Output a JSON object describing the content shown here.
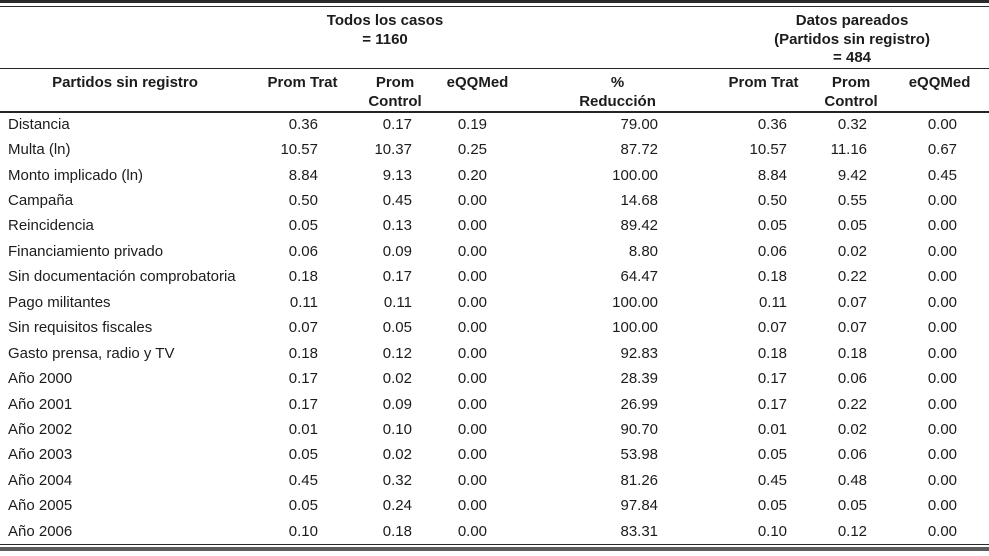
{
  "table": {
    "group_headers": [
      {
        "label": "Todos los casos\n= 1160"
      },
      {
        "label": "Datos pareados\n(Partidos sin registro)\n= 484"
      }
    ],
    "columns": [
      "Partidos sin registro",
      "Prom Trat",
      "Prom\nControl",
      "eQQMed",
      "%\nReducción",
      "Prom Trat",
      "Prom\nControl",
      "eQQMed"
    ],
    "rows": [
      {
        "label": "Distancia",
        "values": [
          "0.36",
          "0.17",
          "0.19",
          "79.00",
          "0.36",
          "0.32",
          "0.00"
        ]
      },
      {
        "label": "Multa (ln)",
        "values": [
          "10.57",
          "10.37",
          "0.25",
          "87.72",
          "10.57",
          "11.16",
          "0.67"
        ]
      },
      {
        "label": "Monto implicado (ln)",
        "values": [
          "8.84",
          "9.13",
          "0.20",
          "100.00",
          "8.84",
          "9.42",
          "0.45"
        ]
      },
      {
        "label": "Campaña",
        "values": [
          "0.50",
          "0.45",
          "0.00",
          "14.68",
          "0.50",
          "0.55",
          "0.00"
        ]
      },
      {
        "label": "Reincidencia",
        "values": [
          "0.05",
          "0.13",
          "0.00",
          "89.42",
          "0.05",
          "0.05",
          "0.00"
        ]
      },
      {
        "label": "Financiamiento privado",
        "values": [
          "0.06",
          "0.09",
          "0.00",
          "8.80",
          "0.06",
          "0.02",
          "0.00"
        ]
      },
      {
        "label": "Sin documentación comprobatoria",
        "values": [
          "0.18",
          "0.17",
          "0.00",
          "64.47",
          "0.18",
          "0.22",
          "0.00"
        ]
      },
      {
        "label": "Pago militantes",
        "values": [
          "0.11",
          "0.11",
          "0.00",
          "100.00",
          "0.11",
          "0.07",
          "0.00"
        ]
      },
      {
        "label": "Sin requisitos fiscales",
        "values": [
          "0.07",
          "0.05",
          "0.00",
          "100.00",
          "0.07",
          "0.07",
          "0.00"
        ]
      },
      {
        "label": "Gasto prensa, radio y TV",
        "values": [
          "0.18",
          "0.12",
          "0.00",
          "92.83",
          "0.18",
          "0.18",
          "0.00"
        ]
      },
      {
        "label": "Año 2000",
        "values": [
          "0.17",
          "0.02",
          "0.00",
          "28.39",
          "0.17",
          "0.06",
          "0.00"
        ]
      },
      {
        "label": "Año 2001",
        "values": [
          "0.17",
          "0.09",
          "0.00",
          "26.99",
          "0.17",
          "0.22",
          "0.00"
        ]
      },
      {
        "label": "Año 2002",
        "values": [
          "0.01",
          "0.10",
          "0.00",
          "90.70",
          "0.01",
          "0.02",
          "0.00"
        ]
      },
      {
        "label": "Año 2003",
        "values": [
          "0.05",
          "0.02",
          "0.00",
          "53.98",
          "0.05",
          "0.06",
          "0.00"
        ]
      },
      {
        "label": "Año 2004",
        "values": [
          "0.45",
          "0.32",
          "0.00",
          "81.26",
          "0.45",
          "0.48",
          "0.00"
        ]
      },
      {
        "label": "Año 2005",
        "values": [
          "0.05",
          "0.24",
          "0.00",
          "97.84",
          "0.05",
          "0.05",
          "0.00"
        ]
      },
      {
        "label": "Año 2006",
        "values": [
          "0.10",
          "0.18",
          "0.00",
          "83.31",
          "0.10",
          "0.12",
          "0.00"
        ]
      }
    ]
  },
  "colors": {
    "text": "#1c1c1c",
    "rule_dark": "#2b2b2b",
    "rule_bottom_gray": "#5c5c5c",
    "background": "#ffffff"
  }
}
